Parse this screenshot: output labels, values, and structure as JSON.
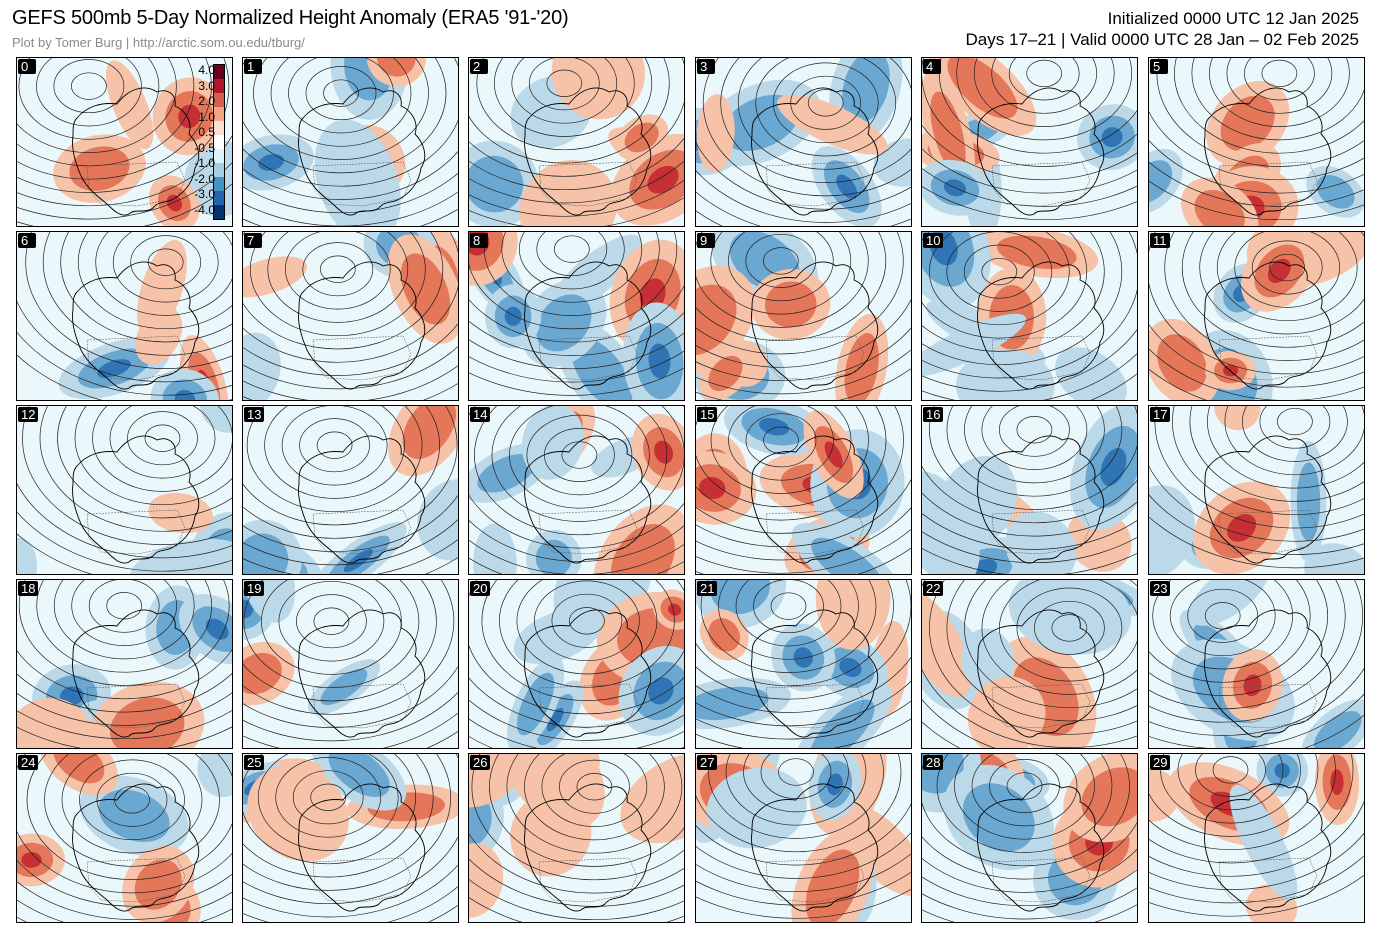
{
  "header": {
    "title": "GEFS 500mb 5-Day Normalized Height Anomaly (ERA5 '91-'20)",
    "credit": "Plot by Tomer Burg | http://arctic.som.ou.edu/tburg/",
    "initialized": "Initialized 0000 UTC 12 Jan 2025",
    "valid": "Days 17–21 | Valid 0000 UTC 28 Jan – 02 Feb 2025"
  },
  "colorbar": {
    "labels": [
      "4.0",
      "3.0",
      "2.0",
      "1.0",
      "0.5",
      "-0.5",
      "-1.0",
      "-2.0",
      "-3.0",
      "-4.0"
    ],
    "colors": [
      "#67001f",
      "#b2182b",
      "#d6604d",
      "#f4a582",
      "#fbe0d0",
      "#ffffff",
      "#e0f3f8",
      "#a6cee3",
      "#4393c3",
      "#2166ac",
      "#08306b"
    ]
  },
  "members": [
    "0",
    "1",
    "2",
    "3",
    "4",
    "5",
    "6",
    "7",
    "8",
    "9",
    "10",
    "11",
    "12",
    "13",
    "14",
    "15",
    "16",
    "17",
    "18",
    "19",
    "20",
    "21",
    "22",
    "23",
    "24",
    "25",
    "26",
    "27",
    "28",
    "29"
  ],
  "anomaly_colors": {
    "pos_strong": "#c62f33",
    "pos_mid": "#e4775a",
    "pos_light": "#f6c2a8",
    "neg_light": "#bcd9ea",
    "neg_mid": "#6aa7d1",
    "neg_strong": "#2f74b5",
    "neutral": "#eaf7fb"
  }
}
